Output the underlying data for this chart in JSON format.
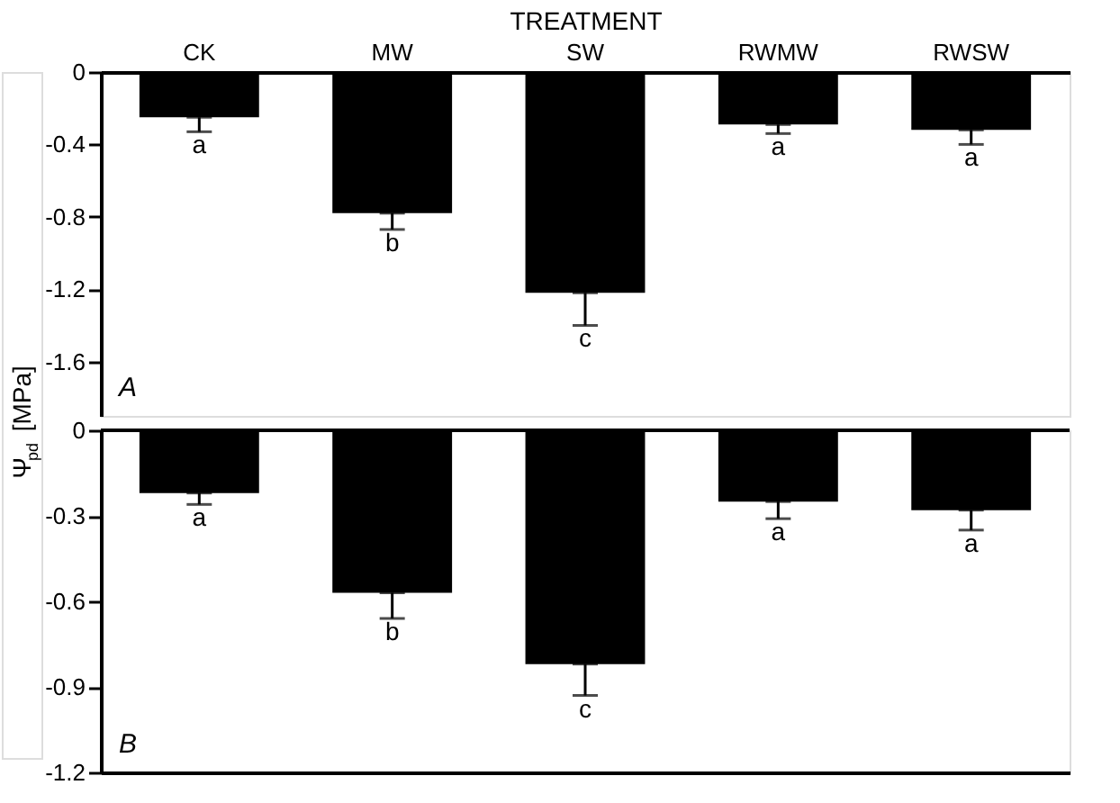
{
  "chart_data": [
    {
      "type": "bar",
      "xlabel": "TREATMENT",
      "ylabel": "Ψ$_{pd}$ [MPa]",
      "categories": [
        "CK",
        "MW",
        "SW",
        "RWMW",
        "RWSW"
      ],
      "series": [
        {
          "color": "#000000",
          "values": [
            -0.25,
            -0.78,
            -1.22,
            -0.29,
            -0.32
          ],
          "errors": [
            [
              -0.33,
              -0.25
            ],
            [
              -0.87,
              -0.78
            ],
            [
              -1.4,
              -1.22
            ],
            [
              -0.34,
              -0.29
            ],
            [
              -0.4,
              -0.32
            ]
          ]
        }
      ],
      "ylim": [
        -1.9,
        0
      ],
      "yticks": [
        0,
        -0.4,
        -0.8,
        -1.2,
        -1.6
      ],
      "grid": false,
      "annotations": [
        "A",
        "a",
        "b",
        "c",
        "a",
        "a"
      ]
    },
    {
      "type": "bar",
      "categories": [
        null,
        null,
        null,
        null,
        null
      ],
      "tick_labels": "y",
      "series": [
        {
          "color": "#000000",
          "values": [
            -0.22,
            -0.57,
            -0.82,
            -0.25,
            -0.28
          ],
          "errors": [
            [
              -0.26,
              -0.22
            ],
            [
              -0.66,
              -0.57
            ],
            [
              -0.93,
              -0.82
            ],
            [
              -0.31,
              -0.25
            ],
            [
              -0.35,
              -0.28
            ]
          ]
        }
      ],
      "ylim": [
        -1.2,
        0
      ],
      "yticks": [
        0,
        -0.3,
        -0.6,
        -0.9,
        -1.2
      ],
      "grid": false,
      "annotations": [
        "B",
        "a",
        "b",
        "c",
        "a",
        "a"
      ]
    }
  ]
}
